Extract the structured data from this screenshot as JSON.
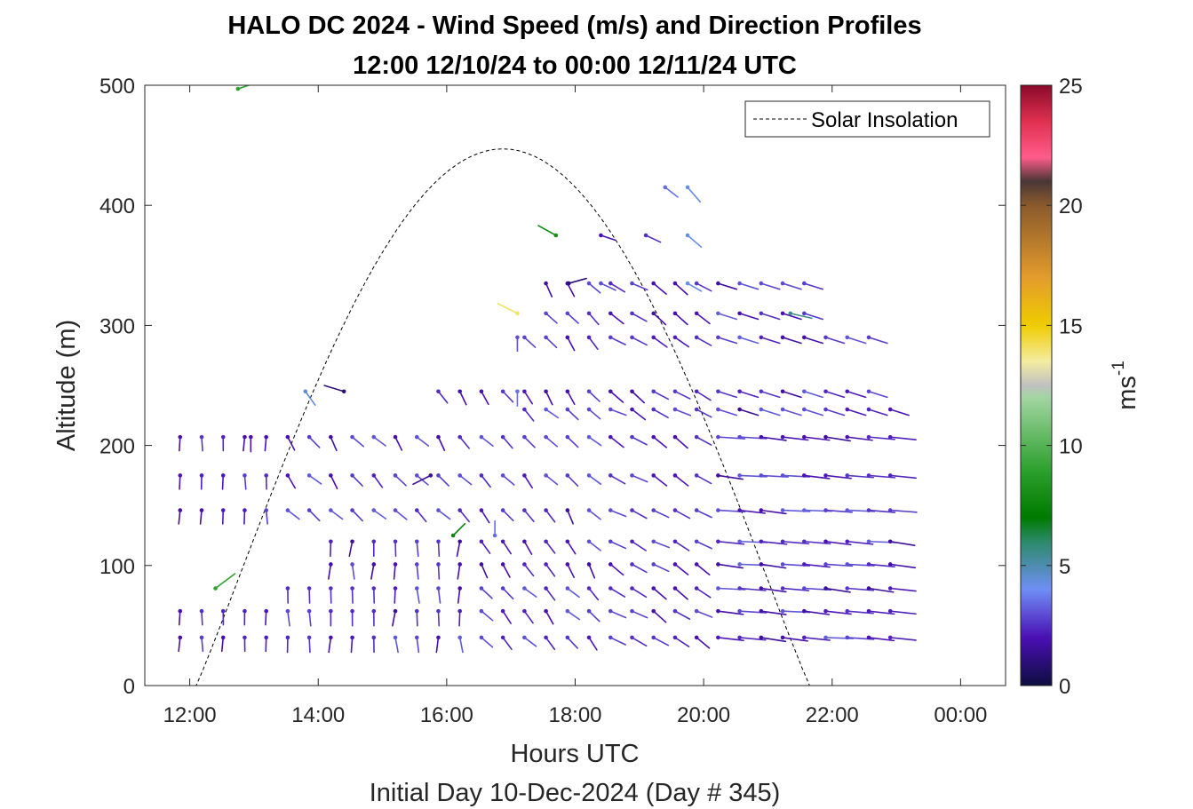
{
  "chart_data": {
    "type": "quiver",
    "title_line1": "HALO DC 2024 - Wind Speed (m/s) and Direction Profiles",
    "title_line2": "12:00 12/10/24 to 00:00 12/11/24  UTC",
    "xlabel": "Hours UTC",
    "xlabel2": "Initial Day 10-Dec-2024 (Day # 345)",
    "ylabel": "Altitude (m)",
    "xlim": [
      11.3,
      24.7
    ],
    "ylim": [
      0,
      500
    ],
    "xticks": [
      12,
      14,
      16,
      18,
      20,
      22,
      24
    ],
    "xtick_labels": [
      "12:00",
      "14:00",
      "16:00",
      "18:00",
      "20:00",
      "22:00",
      "00:00"
    ],
    "yticks": [
      0,
      100,
      200,
      300,
      400,
      500
    ],
    "ytick_labels": [
      "0",
      "100",
      "200",
      "300",
      "400",
      "500"
    ],
    "colorbar": {
      "label": "ms",
      "label_exponent": "-1",
      "range": [
        0,
        25
      ],
      "ticks": [
        0,
        5,
        10,
        15,
        20,
        25
      ],
      "tick_labels": [
        "0",
        "5",
        "10",
        "15",
        "20",
        "25"
      ],
      "stops": [
        {
          "v": 0,
          "c": "#0d0d40"
        },
        {
          "v": 2,
          "c": "#4b0fb4"
        },
        {
          "v": 4,
          "c": "#6f8ef5"
        },
        {
          "v": 6,
          "c": "#2c8a6a"
        },
        {
          "v": 7,
          "c": "#007a00"
        },
        {
          "v": 9,
          "c": "#2ea12e"
        },
        {
          "v": 12,
          "c": "#a3d5a3"
        },
        {
          "v": 12.5,
          "c": "#c0c0c0"
        },
        {
          "v": 13.5,
          "c": "#f4eca0"
        },
        {
          "v": 15,
          "c": "#efcc00"
        },
        {
          "v": 17,
          "c": "#e39b2c"
        },
        {
          "v": 20,
          "c": "#8a5a2c"
        },
        {
          "v": 21,
          "c": "#4a3636"
        },
        {
          "v": 22,
          "c": "#ff5c8a"
        },
        {
          "v": 23.5,
          "c": "#e0304f"
        },
        {
          "v": 25,
          "c": "#8a0a2a"
        }
      ]
    },
    "legend": {
      "label": "Solar Insolation",
      "location": "top-right",
      "style": "dashed black line"
    },
    "solar_insolation": {
      "start_hour": 12.1,
      "end_hour": 21.65,
      "peak_hour": 16.9,
      "peak_altitude": 447
    },
    "wind_vectors": [
      {
        "t": 12.4,
        "z": 81,
        "u": 2,
        "v": 1.5,
        "s": 9
      },
      {
        "t": 16.1,
        "z": 125,
        "u": 1.2,
        "v": 1.2,
        "s": 7.5
      },
      {
        "t": 12.75,
        "z": 497,
        "u": 1.8,
        "v": 0.6,
        "s": 9
      },
      {
        "t": 17.7,
        "z": 375,
        "u": -1.8,
        "v": 1,
        "s": 8
      },
      {
        "t": 17.1,
        "z": 310,
        "u": -2,
        "v": 1,
        "s": 14
      },
      {
        "t": 21.35,
        "z": 310,
        "u": 2.2,
        "v": -0.5,
        "s": 5.5
      },
      {
        "t": 13.8,
        "z": 245,
        "u": 1,
        "v": -1.4,
        "s": 4.5
      },
      {
        "t": 14.4,
        "z": 245,
        "u": -2,
        "v": 0.6,
        "s": 1
      },
      {
        "t": 16.75,
        "z": 125,
        "u": 0,
        "v": 1.5,
        "s": 3.5
      },
      {
        "t": 17.1,
        "z": 245,
        "u": 0,
        "v": -1.5,
        "s": 3.5
      },
      {
        "t": 17.9,
        "z": 335,
        "u": 1.8,
        "v": 0.5,
        "s": 1
      },
      {
        "t": 18.4,
        "z": 335,
        "u": 1.5,
        "v": -0.7,
        "s": 3
      },
      {
        "t": 19.4,
        "z": 415,
        "u": 1.3,
        "v": -1,
        "s": 3.5
      },
      {
        "t": 19.75,
        "z": 415,
        "u": 1.3,
        "v": -1.5,
        "s": 4.2
      },
      {
        "t": 19.75,
        "z": 375,
        "u": 1.4,
        "v": -1.2,
        "s": 4.2
      },
      {
        "t": 19.75,
        "z": 335,
        "u": 1.4,
        "v": -0.8,
        "s": 4.2
      },
      {
        "t": 17.1,
        "z": 290,
        "u": 0,
        "v": -1.4,
        "s": 3
      },
      {
        "t": 12.95,
        "z": 207,
        "u": 0,
        "v": -1.5,
        "s": 2
      },
      {
        "t": 15.75,
        "z": 175,
        "u": -1.8,
        "v": -0.9,
        "s": 1.5
      },
      {
        "t": 18.4,
        "z": 375,
        "u": 1.5,
        "v": -0.5,
        "s": 2
      },
      {
        "t": 19.1,
        "z": 375,
        "u": 1.5,
        "v": -0.7,
        "s": 2.5
      }
    ]
  }
}
